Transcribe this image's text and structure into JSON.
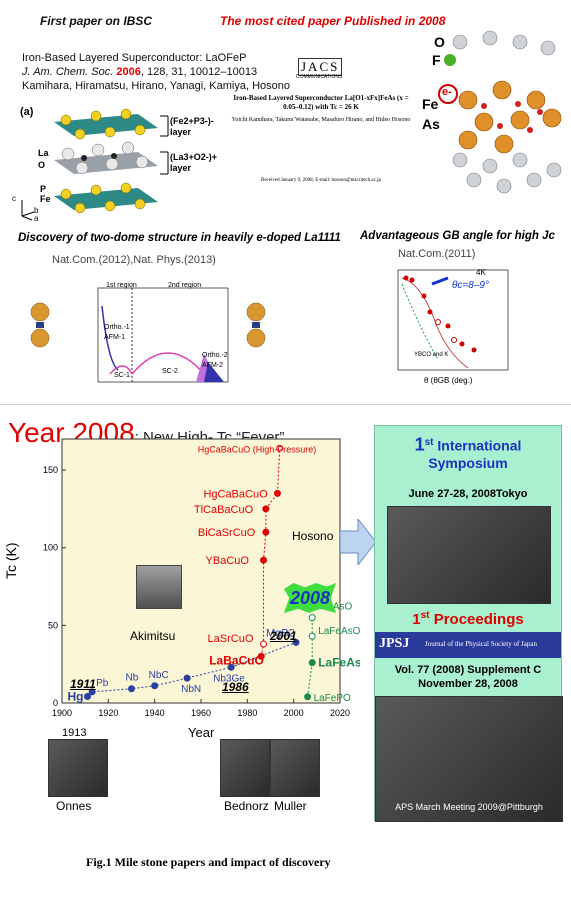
{
  "top": {
    "ibsc_title": "First paper on IBSC",
    "ibsc_citation_line1": "Iron-Based Layered Superconductor: LaOFeP",
    "ibsc_citation_journal": "J. Am. Chem. Soc.",
    "ibsc_citation_year": "2006",
    "ibsc_citation_rest": ", 128, 31, 10012–10013",
    "ibsc_authors": "Kamihara, Hiramatsu, Hirano, Yanagi, Kamiya, Hosono",
    "panel_a_label": "(a)",
    "layer_fe": "(Fe2+P3-)- layer",
    "layer_la": "(La3+O2-)+ layer",
    "atom_la": "La",
    "atom_o": "O",
    "atom_p": "P",
    "atom_fe": "Fe",
    "axes_c": "c",
    "axes_b": "b",
    "axes_a": "a",
    "cited_title": "The most cited paper Published in 2008",
    "jacs_logo": "JACS",
    "jacs_sub": "COMMUNICATIONS",
    "jacs_paper_title": "Iron-Based Layered Superconductor La[O1-xFx]FeAs (x = 0.05–0.12) with Tc = 26 K",
    "jacs_authors": "Yoichi Kamihara, Takumi Watanabe, Masahiro Hirano, and Hideo Hosono",
    "jacs_received": "Received January 9, 2008; E-mail: hosono@msl.titech.ac.jp",
    "struct_o": "O",
    "struct_f": "F",
    "struct_e": "e-",
    "struct_fe": "Fe",
    "struct_as": "As",
    "twodome_title": "Discovery of two-dome structure in heavily e-doped La1111",
    "twodome_journal": "Nat.Com.(2012),Nat. Phys.(2013)",
    "twodome_region1": "1st region",
    "twodome_region2": "2nd region",
    "twodome_ortho1": "Ortho.-1",
    "twodome_afm1": "AFM-1",
    "twodome_sc1": "SC-1",
    "twodome_sc2": "SC-2",
    "twodome_ortho2": "Ortho.-2",
    "twodome_afm2": "AFM-2",
    "gb_title": "Advantageous GB angle for high Jc",
    "gb_journal": "Nat.Com.(2011)",
    "gb_4k": "4K",
    "gb_theta": "θc=8–9°",
    "gb_ybco": "YBCO and K",
    "gb_xlabel": "θ (θGB (deg.)"
  },
  "bottom": {
    "year_title": "Year 2008",
    "year_subtitle": ": New High- Tc “Fever”",
    "hosono": "Hosono",
    "akimitsu": "Akimitsu",
    "year_2008_badge": "2008",
    "onnes": "Onnes",
    "onnes_year": "1913",
    "bednorz": "Bednorz",
    "muller": "Muller",
    "symposium_title_sup": "st",
    "symposium_title_num": "1",
    "symposium_title": "International Symposium",
    "symposium_date": "June 27-28, 2008Tokyo",
    "proceedings_num": "1",
    "proceedings_sup": "st",
    "proceedings_title": "Proceedings",
    "jpsj_logo": "JPSJ",
    "jpsj_journal": "Journal of the Physical Society of Japan",
    "jpsj_vol": "Vol. 77 (2008) Supplement C",
    "jpsj_date": "November 28, 2008",
    "aps_caption": "APS March Meeting 2009@Pittburgh"
  },
  "caption": "Fig.1 Mile stone papers and impact of discovery",
  "chart_data": {
    "type": "scatter",
    "xlabel": "Year",
    "ylabel": "Tc (K)",
    "xlim": [
      1900,
      2020
    ],
    "ylim": [
      0,
      170
    ],
    "xticks": [
      "1900",
      "1920",
      "1940",
      "1960",
      "1980",
      "2000",
      "2020"
    ],
    "yticks": [
      "0",
      "50",
      "100",
      "150"
    ],
    "series": [
      {
        "color": "#2a3fa0",
        "points": [
          {
            "label": "Hg",
            "x": 1911,
            "y": 4.2
          },
          {
            "label": "Pb",
            "x": 1913,
            "y": 7.2
          },
          {
            "label": "Nb",
            "x": 1930,
            "y": 9.2
          },
          {
            "label": "NbC",
            "x": 1940,
            "y": 11.1
          },
          {
            "label": "NbN",
            "x": 1954,
            "y": 16
          },
          {
            "label": "Nb3Ge",
            "x": 1973,
            "y": 23
          },
          {
            "label": "MgB2",
            "x": 2001,
            "y": 39
          }
        ]
      },
      {
        "color": "#e00000",
        "points": [
          {
            "label": "LaBaCuO",
            "x": 1986,
            "y": 30
          },
          {
            "label": "LaSrCuO",
            "x": 1987,
            "y": 38
          },
          {
            "label": "YBaCuO",
            "x": 1987,
            "y": 92
          },
          {
            "label": "BiCaSrCuO",
            "x": 1988,
            "y": 110
          },
          {
            "label": "TlCaBaCuO",
            "x": 1988,
            "y": 125
          },
          {
            "label": "HgCaBaCuO",
            "x": 1993,
            "y": 135
          },
          {
            "label": "HgCaBaCuO (High-Pressure)",
            "x": 1994,
            "y": 164
          }
        ]
      },
      {
        "color": "#1a8a50",
        "points": [
          {
            "label": "LaFePO",
            "x": 2006,
            "y": 4
          },
          {
            "label": "LaFeAsO",
            "x": 2008,
            "y": 26
          },
          {
            "label": "LaFeAsO (High-Pressure)",
            "x": 2008,
            "y": 43
          },
          {
            "label": "SmFeAsO",
            "x": 2008,
            "y": 55
          }
        ]
      }
    ],
    "annotations": [
      "1911",
      "1986",
      "2001"
    ]
  }
}
